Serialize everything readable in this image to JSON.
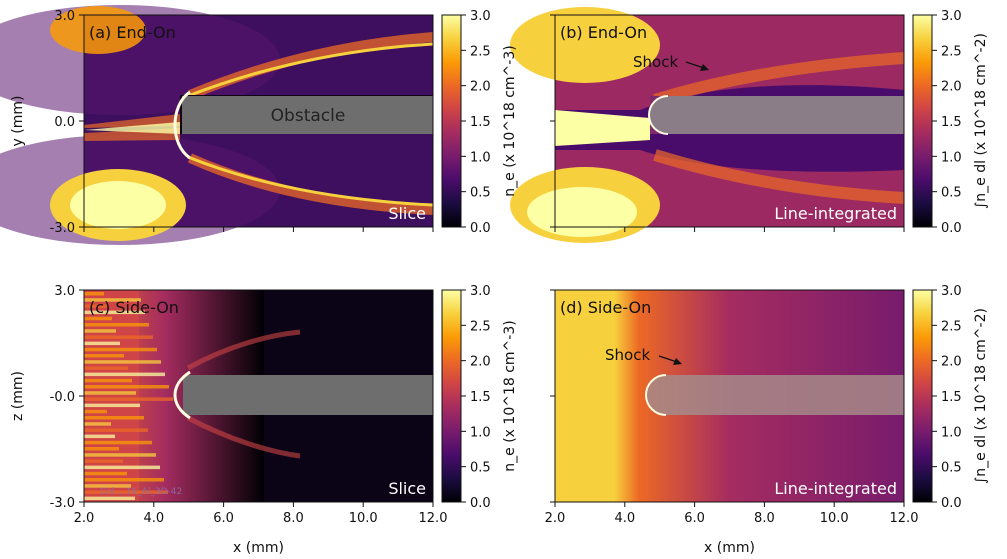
{
  "colors": {
    "colormap_inferno": [
      "#000004",
      "#1b0c41",
      "#4a0c6b",
      "#781c6d",
      "#a52c60",
      "#cf4446",
      "#ed6925",
      "#fb9b06",
      "#f7d13d",
      "#fcffa4"
    ],
    "obstacle_fill": "#6e6e6e",
    "shock_rim": "#fffbe0"
  },
  "chart_data": [
    {
      "id": "a",
      "type": "heatmap",
      "title": "(a) End-On",
      "corner_label": "Slice",
      "obstacle_label": "Obstacle",
      "xlabel": "",
      "ylabel": "y (mm)",
      "xlim": [
        2.0,
        12.0
      ],
      "ylim": [
        -3.0,
        3.0
      ],
      "xticks": [
        "2.0",
        "4.0",
        "6.0",
        "8.0",
        "10.0",
        "12.0"
      ],
      "yticks": [
        "3.0",
        "0.0",
        "-3.0"
      ],
      "colorbar": {
        "label": "n_e (x 10^18 cm^-3)",
        "min": 0.0,
        "max": 3.0,
        "ticks": [
          "3.0",
          "2.5",
          "2.0",
          "1.5",
          "1.0",
          "0.5",
          "0.0"
        ]
      }
    },
    {
      "id": "b",
      "type": "heatmap",
      "title": "(b) End-On",
      "corner_label": "Line-integrated",
      "annotation": "Shock",
      "xlabel": "",
      "ylabel": "",
      "xlim": [
        2.0,
        12.0
      ],
      "ylim": [
        -3.0,
        3.0
      ],
      "colorbar": {
        "label": "∫n_e dl (x 10^18 cm^-2)",
        "min": 0.0,
        "max": 3.0,
        "ticks": [
          "3.0",
          "2.5",
          "2.0",
          "1.5",
          "1.0",
          "0.5",
          "0.0"
        ]
      }
    },
    {
      "id": "c",
      "type": "heatmap",
      "title": "(c) Side-On",
      "corner_label": "Slice",
      "watermark": "Col... 16_Al_3D-42",
      "xlabel": "x (mm)",
      "ylabel": "z (mm)",
      "xlim": [
        2.0,
        12.0
      ],
      "ylim": [
        -3.0,
        3.0
      ],
      "xticks": [
        "2.0",
        "4.0",
        "6.0",
        "8.0",
        "10.0",
        "12.0"
      ],
      "yticks": [
        "3.0",
        "-0.0",
        "-3.0"
      ],
      "colorbar": {
        "label": "n_e (x 10^18 cm^-3)",
        "min": 0.0,
        "max": 3.0,
        "ticks": [
          "3.0",
          "2.5",
          "2.0",
          "1.5",
          "1.0",
          "0.5",
          "0.0"
        ]
      }
    },
    {
      "id": "d",
      "type": "heatmap",
      "title": "(d) Side-On",
      "corner_label": "Line-integrated",
      "annotation": "Shock",
      "xlabel": "x (mm)",
      "ylabel": "",
      "xlim": [
        2.0,
        12.0
      ],
      "ylim": [
        -3.0,
        3.0
      ],
      "xticks": [
        "2.0",
        "4.0",
        "6.0",
        "8.0",
        "10.0",
        "12.0"
      ],
      "colorbar": {
        "label": "∫n_e dl (x 10^18 cm^-2)",
        "min": 0.0,
        "max": 3.0,
        "ticks": [
          "3.0",
          "2.5",
          "2.0",
          "1.5",
          "1.0",
          "0.5",
          "0.0"
        ]
      }
    }
  ]
}
